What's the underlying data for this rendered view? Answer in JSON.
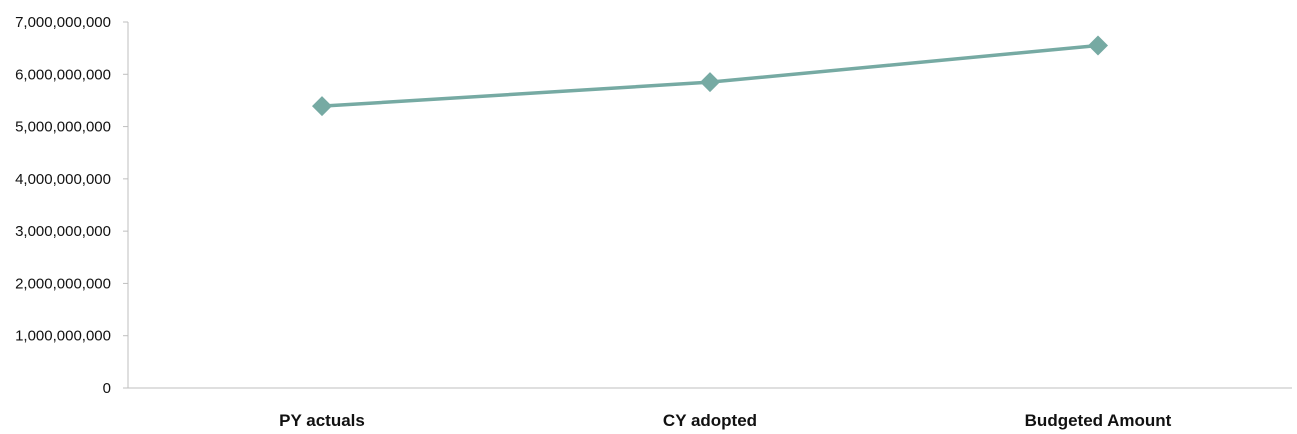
{
  "chart_data": {
    "type": "line",
    "categories": [
      "PY actuals",
      "CY adopted",
      "Budgeted Amount"
    ],
    "series": [
      {
        "values": [
          5390000000,
          5850000000,
          6550000000
        ],
        "color": "#76aaa3",
        "marker": "diamond"
      }
    ],
    "yticks": [
      "0",
      "1,000,000,000",
      "2,000,000,000",
      "3,000,000,000",
      "4,000,000,000",
      "5,000,000,000",
      "6,000,000,000",
      "7,000,000,000"
    ],
    "ylim": [
      0,
      7000000000
    ],
    "title": "",
    "xlabel": "",
    "ylabel": "",
    "grid": false,
    "legend": "none",
    "axis_color": "#bfbfbf"
  }
}
